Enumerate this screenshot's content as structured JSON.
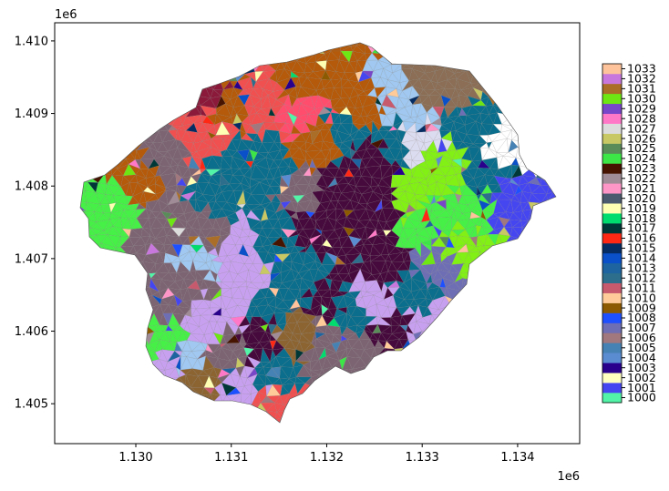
{
  "chart_data": {
    "type": "heatmap",
    "title": "",
    "xlabel": "",
    "ylabel": "",
    "x_offset_label": "1e6",
    "y_offset_label": "1e6",
    "xlim": [
      1.12915,
      1.13465
    ],
    "ylim": [
      1.40445,
      1.41025
    ],
    "x_ticks": [
      1.13,
      1.131,
      1.132,
      1.133,
      1.134
    ],
    "x_tick_labels": [
      "1.130",
      "1.131",
      "1.132",
      "1.133",
      "1.134"
    ],
    "y_ticks": [
      1.405,
      1.406,
      1.407,
      1.408,
      1.409,
      1.41
    ],
    "y_tick_labels": [
      "1.405",
      "1.406",
      "1.407",
      "1.408",
      "1.409",
      "1.410"
    ],
    "grid": false,
    "colorbar": {
      "position": "right",
      "labels": [
        "1000",
        "1001",
        "1002",
        "1003",
        "1004",
        "1005",
        "1006",
        "1007",
        "1008",
        "1009",
        "1010",
        "1011",
        "1012",
        "1013",
        "1014",
        "1015",
        "1016",
        "1017",
        "1018",
        "1019",
        "1020",
        "1021",
        "1022",
        "1023",
        "1024",
        "1025",
        "1026",
        "1027",
        "1028",
        "1029",
        "1030",
        "1031",
        "1032",
        "1033"
      ],
      "colors": [
        "#52f5a8",
        "#4646f0",
        "#ffffc0",
        "#28008c",
        "#5a8cd2",
        "#4682b4",
        "#a0787d",
        "#6e6eb4",
        "#1e50ff",
        "#8c5a00",
        "#ffcc99",
        "#c85a6e",
        "#2d6e8c",
        "#1e64a0",
        "#0a50c8",
        "#052d64",
        "#ff2814",
        "#003737",
        "#00dc6e",
        "#ffffb4",
        "#4b5a6e",
        "#ff96c8",
        "#a08c96",
        "#461400",
        "#3ce646",
        "#5a8c5a",
        "#c8c864",
        "#dcdcdc",
        "#ff78c8",
        "#7846c8",
        "#6ee614",
        "#aa6e28",
        "#c878dc",
        "#ffc39b"
      ]
    },
    "map_colors": {
      "land_brown": "#b45a0a",
      "dark_purple": "#460a3c",
      "teal": "#0a6e8c",
      "taupe": "#7d6473",
      "light_blue": "#a0c8f0",
      "lime": "#82f014",
      "green": "#46f046",
      "lavender": "#c8a0f0",
      "coral": "#f05050",
      "mud": "#8c6432"
    },
    "seed": 1033
  }
}
